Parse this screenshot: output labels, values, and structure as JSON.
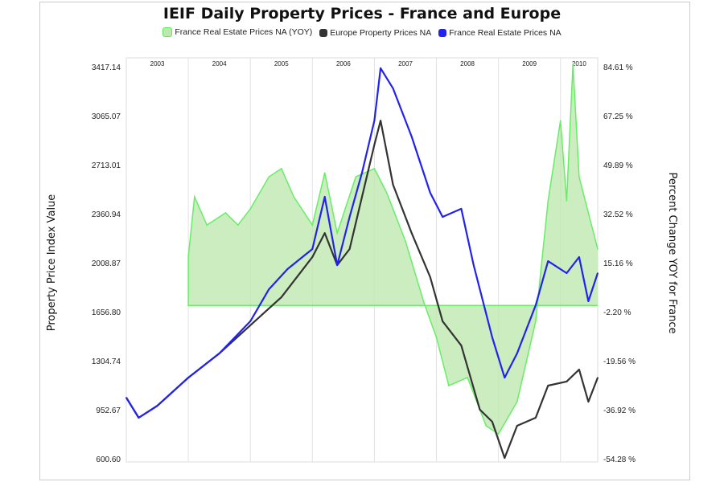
{
  "chart_data": {
    "type": "line",
    "title": "IEIF Daily Property Prices - France and Europe",
    "ylabel": "Property Price Index Value",
    "y2label": "Percent Change YOY for France",
    "ylim": [
      600.6,
      3417.14
    ],
    "y2lim": [
      -54.28,
      84.61
    ],
    "yticks": [
      "3417.14",
      "3065.07",
      "2713.01",
      "2360.94",
      "2008.87",
      "1656.80",
      "1304.74",
      "952.67",
      "600.60"
    ],
    "y2ticks": [
      "84.61 %",
      "67.25 %",
      "49.89 %",
      "32.52 %",
      "15.16 %",
      "-2.20 %",
      "-19.56 %",
      "-36.92 %",
      "-54.28 %"
    ],
    "xticks": [
      "2003",
      "2004",
      "2005",
      "2006",
      "2007",
      "2008",
      "2009",
      "2010"
    ],
    "xlim": [
      2003.0,
      2010.6
    ],
    "grid": "vertical",
    "legend_position": "top",
    "series": [
      {
        "name": "France Real Estate Prices NA (YOY)",
        "axis": "right",
        "type": "area",
        "color": "#66ee66",
        "x": [
          2004.0,
          2004.0,
          2004.1,
          2004.3,
          2004.6,
          2004.8,
          2005.0,
          2005.3,
          2005.5,
          2005.7,
          2006.0,
          2006.2,
          2006.4,
          2006.7,
          2007.0,
          2007.2,
          2007.5,
          2007.8,
          2008.0,
          2008.2,
          2008.5,
          2008.8,
          2009.0,
          2009.3,
          2009.6,
          2009.8,
          2010.0,
          2010.1,
          2010.2,
          2010.3,
          2010.45,
          2010.6
        ],
        "y": [
          0,
          17.2,
          38.5,
          28.5,
          32.8,
          28.5,
          34.2,
          45.6,
          48.5,
          38.5,
          28.5,
          47.0,
          25.7,
          45.6,
          48.5,
          39.9,
          22.8,
          0.9,
          -11.3,
          -28.4,
          -25.5,
          -42.6,
          -45.5,
          -34.1,
          -5.6,
          37.1,
          65.5,
          37.1,
          85.5,
          45.6,
          32.8,
          20.0
        ]
      },
      {
        "name": "Europe Property Prices NA",
        "axis": "left",
        "color": "#333333",
        "x": [
          2003.0,
          2003.2,
          2003.5,
          2004.0,
          2004.5,
          2005.0,
          2005.5,
          2006.0,
          2006.2,
          2006.4,
          2006.6,
          2007.0,
          2007.1,
          2007.3,
          2007.6,
          2007.9,
          2008.1,
          2008.4,
          2008.7,
          2008.9,
          2009.1,
          2009.3,
          2009.6,
          2009.8,
          2010.1,
          2010.3,
          2010.45,
          2010.6
        ],
        "y": [
          1039,
          895,
          981,
          1183,
          1357,
          1559,
          1761,
          2049,
          2222,
          1991,
          2107,
          2857,
          3030,
          2569,
          2222,
          1905,
          1588,
          1414,
          953,
          866,
          606,
          837,
          895,
          1126,
          1155,
          1241,
          1010,
          1183
        ]
      },
      {
        "name": "France Real Estate Prices NA",
        "axis": "left",
        "color": "#2222ee",
        "x": [
          2003.0,
          2003.2,
          2003.5,
          2004.0,
          2004.5,
          2005.0,
          2005.3,
          2005.6,
          2006.0,
          2006.2,
          2006.4,
          2006.6,
          2006.8,
          2007.0,
          2007.1,
          2007.3,
          2007.6,
          2007.9,
          2008.1,
          2008.4,
          2008.6,
          2008.9,
          2009.1,
          2009.3,
          2009.6,
          2009.8,
          2010.1,
          2010.3,
          2010.45,
          2010.6
        ],
        "y": [
          1039,
          895,
          981,
          1183,
          1357,
          1588,
          1818,
          1963,
          2107,
          2482,
          1991,
          2338,
          2655,
          3030,
          3406,
          3261,
          2915,
          2511,
          2338,
          2396,
          1991,
          1472,
          1183,
          1357,
          1703,
          2020,
          1934,
          2049,
          1732,
          1934
        ]
      }
    ]
  }
}
